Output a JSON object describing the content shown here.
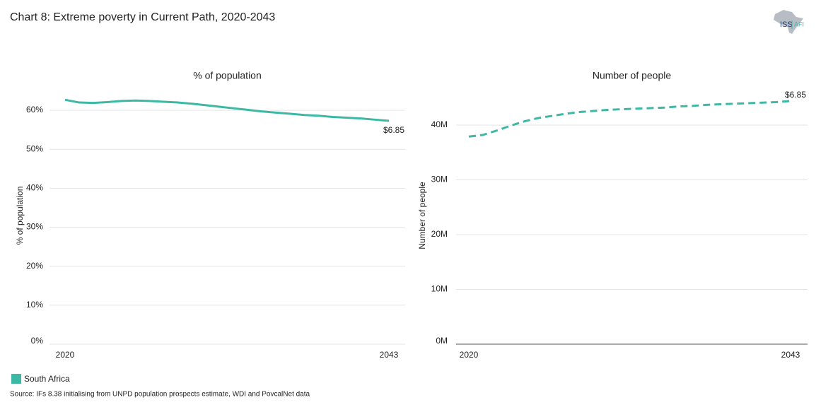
{
  "title": "Chart 8: Extreme poverty in Current Path, 2020-2043",
  "logo": {
    "primary": "ISS",
    "secondary": "AFI"
  },
  "source": "Source: IFs 8.38 initialising from UNPD population prospects estimate, WDI and PovcalNet data",
  "chart_data": [
    {
      "type": "line",
      "title": "% of population",
      "y_label": "% of population",
      "x": [
        2020,
        2021,
        2022,
        2023,
        2024,
        2025,
        2026,
        2027,
        2028,
        2029,
        2030,
        2031,
        2032,
        2033,
        2034,
        2035,
        2036,
        2037,
        2038,
        2039,
        2040,
        2041,
        2042,
        2043
      ],
      "xlim": [
        2020,
        2043
      ],
      "xticks": [
        2020,
        2043
      ],
      "ylim": [
        0,
        65
      ],
      "yticks": [
        {
          "value": 0,
          "label": "0%"
        },
        {
          "value": 10,
          "label": "10%"
        },
        {
          "value": 20,
          "label": "20%"
        },
        {
          "value": 30,
          "label": "30%"
        },
        {
          "value": 40,
          "label": "40%"
        },
        {
          "value": 50,
          "label": "50%"
        },
        {
          "value": 60,
          "label": "60%"
        }
      ],
      "grid": true,
      "legend": "bottom-left",
      "series": [
        {
          "name": "South Africa",
          "color": "#3cb8a4",
          "line_style": "solid",
          "values": [
            62.7,
            62.0,
            61.9,
            62.1,
            62.4,
            62.5,
            62.4,
            62.2,
            62.0,
            61.7,
            61.3,
            60.9,
            60.5,
            60.1,
            59.7,
            59.4,
            59.1,
            58.8,
            58.6,
            58.3,
            58.1,
            57.9,
            57.6,
            57.3
          ]
        }
      ],
      "annotation": "$6.85"
    },
    {
      "type": "line",
      "title": "Number of people",
      "y_label": "Number of people",
      "x": [
        2020,
        2021,
        2022,
        2023,
        2024,
        2025,
        2026,
        2027,
        2028,
        2029,
        2030,
        2031,
        2032,
        2033,
        2034,
        2035,
        2036,
        2037,
        2038,
        2039,
        2040,
        2041,
        2042,
        2043
      ],
      "xlim": [
        2020,
        2043
      ],
      "xticks": [
        2020,
        2043
      ],
      "ylim": [
        0,
        46000000
      ],
      "yticks": [
        {
          "value": 0,
          "label": "0M"
        },
        {
          "value": 10000000,
          "label": "10M"
        },
        {
          "value": 20000000,
          "label": "20M"
        },
        {
          "value": 30000000,
          "label": "30M"
        },
        {
          "value": 40000000,
          "label": "40M"
        }
      ],
      "grid": true,
      "series": [
        {
          "color": "#3cb8a4",
          "line_style": "dashed",
          "values": [
            37900000,
            38200000,
            39000000,
            39900000,
            40700000,
            41300000,
            41700000,
            42100000,
            42400000,
            42600000,
            42800000,
            42900000,
            43000000,
            43100000,
            43200000,
            43400000,
            43500000,
            43700000,
            43800000,
            43900000,
            44000000,
            44100000,
            44200000,
            44400000
          ]
        }
      ],
      "annotation": "$6.85"
    }
  ]
}
